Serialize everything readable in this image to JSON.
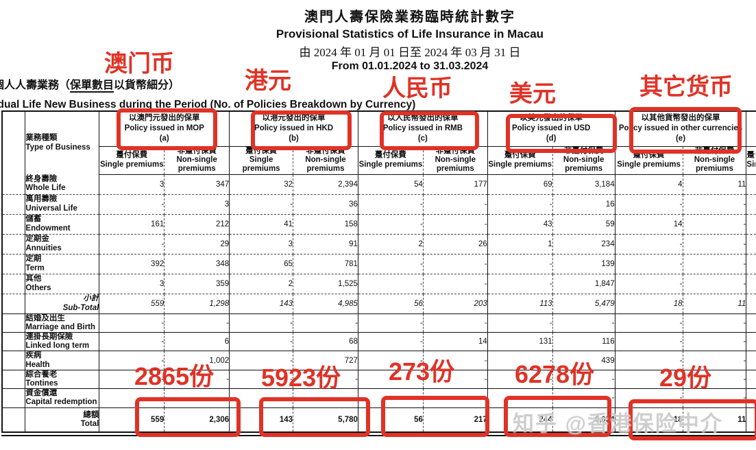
{
  "header": {
    "title_zh": "澳門人壽保險業務臨時統計數字",
    "title_en": "Provisional Statistics of Life Insurance in Macau",
    "period_zh": "由 2024 年 01 月 01 日至 2024 年 03 月 31 日",
    "period_en": "From 01.01.2024 to 31.03.2024",
    "subtitle_zh_pre": "個人人壽業務（",
    "subtitle_zh_underlined": "保單數目",
    "subtitle_zh_post": "以貨幣細分）",
    "subtitle_en_pre": "Individual Life New Business during the Period (",
    "subtitle_en_underlined": "No. of Policies",
    "subtitle_en_post": " Breakdown by Currency)"
  },
  "annotations": {
    "currency_notes": [
      "澳门币",
      "港元",
      "人民币",
      "美元",
      "其它货币"
    ],
    "total_notes": [
      "2865份",
      "5923份",
      "273份",
      "6278份",
      "29份"
    ],
    "accent_color": "#e03226"
  },
  "watermark": "知乎 @香港保险中介",
  "table": {
    "type_of_business_zh": "業務種類",
    "type_of_business_en": "Type of Business",
    "col_single_zh": "躉付保費",
    "col_single_en": "Single premiums",
    "col_nonsingle_zh": "非躉付保費",
    "col_nonsingle_en1": "Non-single",
    "col_nonsingle_en2": "premiums",
    "currencies": [
      {
        "key": "mop",
        "zh": "以澳門元發出的保單",
        "en": "Policy issued in MOP",
        "letter": "(a)"
      },
      {
        "key": "hkd",
        "zh": "以港元發出的保單",
        "en": "Policy issued in HKD",
        "letter": "(b)"
      },
      {
        "key": "rmb",
        "zh": "以人民幣發出的保單",
        "en": "Policy issued in RMB",
        "letter": "(c)"
      },
      {
        "key": "usd",
        "zh": "以美元發出的保單",
        "en": "Policy issued in USD",
        "letter": "(d)"
      },
      {
        "key": "other",
        "zh": "以其他貨幣發出的保單",
        "en": "Policy issued in other currencies",
        "letter": "(e)"
      }
    ],
    "rows": [
      {
        "slug": "whole-life",
        "zh": "終身壽險",
        "en": "Whole Life",
        "section": "main",
        "values": [
          "3",
          "347",
          "32",
          "2,394",
          "54",
          "177",
          "69",
          "3,184",
          "4",
          "11"
        ]
      },
      {
        "slug": "universal-life",
        "zh": "萬用壽險",
        "en": "Universal Life",
        "section": "main",
        "values": [
          "-",
          "3",
          "-",
          "36",
          "-",
          "-",
          "-",
          "16",
          "-",
          "-"
        ]
      },
      {
        "slug": "endowment",
        "zh": "儲蓄",
        "en": "Endowment",
        "section": "main",
        "values": [
          "161",
          "212",
          "41",
          "158",
          "-",
          "-",
          "43",
          "59",
          "14",
          "-"
        ]
      },
      {
        "slug": "annuities",
        "zh": "定期金",
        "en": "Annuities",
        "section": "main",
        "values": [
          "-",
          "29",
          "3",
          "91",
          "2",
          "26",
          "1",
          "234",
          "-",
          "-"
        ]
      },
      {
        "slug": "term",
        "zh": "定期",
        "en": "Term",
        "section": "main",
        "values": [
          "392",
          "348",
          "65",
          "781",
          "-",
          "-",
          "-",
          "139",
          "-",
          "-"
        ]
      },
      {
        "slug": "others",
        "zh": "其他",
        "en": "Others",
        "section": "main",
        "values": [
          "3",
          "359",
          "2",
          "1,525",
          "-",
          "-",
          "-",
          "1,847",
          "-",
          "-"
        ]
      },
      {
        "slug": "sub-total",
        "zh": "小計",
        "en": "Sub-Total",
        "section": "subtotal",
        "values": [
          "559",
          "1,298",
          "143",
          "4,985",
          "56",
          "203",
          "113",
          "5,479",
          "18",
          "11"
        ]
      },
      {
        "slug": "marriage-and-birth",
        "zh": "結婚及出生",
        "en": "Marriage and Birth",
        "section": "lower",
        "values": [
          "-",
          "-",
          "-",
          "-",
          "-",
          "-",
          "-",
          "-",
          "-",
          "-"
        ]
      },
      {
        "slug": "linked-long-term",
        "zh": "連掛長期保險",
        "en": "Linked long term",
        "section": "lower",
        "values": [
          "-",
          "6",
          "-",
          "68",
          "-",
          "14",
          "131",
          "116",
          "-",
          "-"
        ]
      },
      {
        "slug": "health",
        "zh": "疾病",
        "en": "Health",
        "section": "lower",
        "values": [
          "-",
          "1,002",
          "-",
          "727",
          "-",
          "-",
          "-",
          "439",
          "-",
          "-"
        ]
      },
      {
        "slug": "tontines",
        "zh": "綜合養老",
        "en": "Tontines",
        "section": "lower",
        "values": [
          "-",
          "-",
          "-",
          "-",
          "-",
          "-",
          "-",
          "-",
          "-",
          "-"
        ]
      },
      {
        "slug": "capital-redemption",
        "zh": "資金償還",
        "en": "Capital redemption",
        "section": "lower",
        "values": [
          "-",
          "-",
          "-",
          "-",
          "-",
          "-",
          "-",
          "-",
          "-",
          "-"
        ]
      },
      {
        "slug": "total",
        "zh": "總額",
        "en": "Total",
        "section": "total",
        "values": [
          "559",
          "2,306",
          "143",
          "5,780",
          "56",
          "217",
          "244",
          "6,034",
          "18",
          "11"
        ]
      }
    ]
  }
}
